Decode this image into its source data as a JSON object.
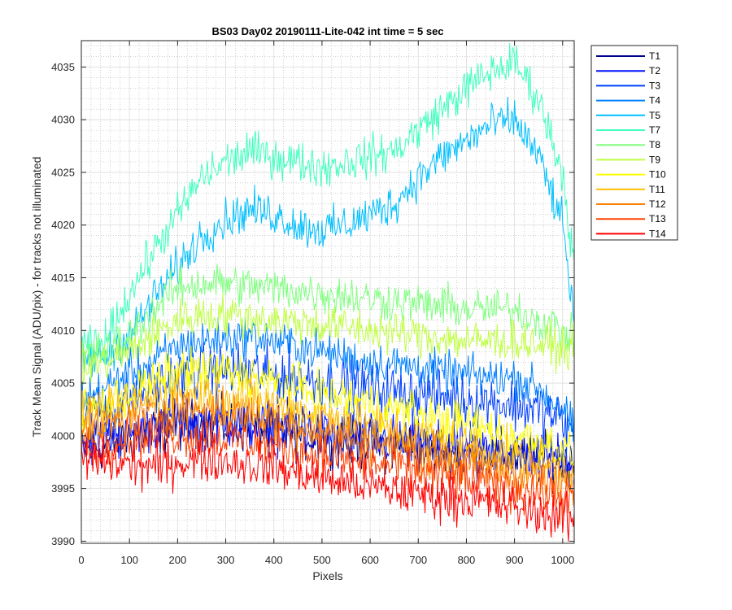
{
  "chart_data": {
    "type": "line",
    "title": "BS03 Day02 20190111-Lite-042 int time = 5 sec",
    "xlabel": "Pixels",
    "ylabel": "Track Mean Signal (ADU/pix) - for tracks not illuminated",
    "xlim": [
      0,
      1024
    ],
    "ylim": [
      3989.8,
      4037.5
    ],
    "xticks": [
      0,
      100,
      200,
      300,
      400,
      500,
      600,
      700,
      800,
      900,
      1000
    ],
    "yticks": [
      3990,
      3995,
      4000,
      4005,
      4010,
      4015,
      4020,
      4025,
      4030,
      4035
    ],
    "grid": "major and minor",
    "legend_position": "outside-top-right",
    "noise_note": "each series is dense, noisy per-pixel data; values listed are approximate trend levels at anchor pixels",
    "x_anchor": [
      0,
      50,
      100,
      150,
      200,
      250,
      300,
      350,
      400,
      450,
      500,
      550,
      600,
      650,
      700,
      750,
      800,
      850,
      900,
      950,
      1000,
      1024
    ],
    "series": [
      {
        "name": "T1",
        "color": "#00008F",
        "amplitude": 2.0,
        "values": [
          3998.5,
          3999.2,
          3999.8,
          4000.5,
          4001.0,
          4001.2,
          4001.0,
          4000.8,
          4000.5,
          4000.2,
          3999.8,
          3999.5,
          3999.2,
          3999.0,
          3998.8,
          3998.5,
          3998.3,
          3998.2,
          3998.0,
          3997.8,
          3997.5,
          3997.3
        ]
      },
      {
        "name": "T2",
        "color": "#0010FF",
        "amplitude": 2.0,
        "values": [
          3999.5,
          4000.0,
          4000.5,
          4001.0,
          4001.5,
          4001.5,
          4001.3,
          4001.0,
          4000.8,
          4000.5,
          4000.2,
          4000.0,
          3999.7,
          3999.5,
          3999.2,
          3999.0,
          3998.8,
          3998.6,
          3998.4,
          3998.2,
          3998.0,
          3997.8
        ]
      },
      {
        "name": "T3",
        "color": "#0040FF",
        "amplitude": 2.2,
        "values": [
          4001.5,
          4002.5,
          4003.5,
          4004.5,
          4005.5,
          4006.0,
          4006.2,
          4006.0,
          4005.8,
          4005.5,
          4005.2,
          4004.8,
          4004.5,
          4004.2,
          4004.0,
          4003.8,
          4003.5,
          4003.2,
          4003.0,
          4002.5,
          4001.5,
          4000.0
        ]
      },
      {
        "name": "T4",
        "color": "#0080FF",
        "amplitude": 1.6,
        "values": [
          4003.5,
          4004.5,
          4006.0,
          4007.0,
          4008.5,
          4009.0,
          4009.2,
          4009.5,
          4009.0,
          4008.5,
          4008.0,
          4007.5,
          4007.0,
          4006.8,
          4006.5,
          4006.0,
          4005.8,
          4005.5,
          4005.5,
          4004.5,
          4002.5,
          4000.5
        ]
      },
      {
        "name": "T5",
        "color": "#00BFFF",
        "amplitude": 1.6,
        "values": [
          4007.0,
          4007.5,
          4009.5,
          4013.0,
          4016.0,
          4019.0,
          4020.5,
          4021.5,
          4021.0,
          4020.0,
          4019.5,
          4020.0,
          4021.0,
          4022.0,
          4024.5,
          4026.5,
          4028.0,
          4029.5,
          4030.0,
          4026.5,
          4020.0,
          4011.0
        ]
      },
      {
        "name": "T7",
        "color": "#40FFBF",
        "amplitude": 1.6,
        "values": [
          4008.0,
          4009.0,
          4013.5,
          4017.5,
          4021.0,
          4024.5,
          4026.0,
          4027.0,
          4026.5,
          4026.0,
          4025.5,
          4026.0,
          4026.5,
          4027.0,
          4029.0,
          4031.0,
          4033.0,
          4034.5,
          4035.5,
          4032.0,
          4025.0,
          4016.0
        ]
      },
      {
        "name": "T8",
        "color": "#80FF80",
        "amplitude": 1.6,
        "values": [
          4007.5,
          4008.0,
          4009.5,
          4012.0,
          4014.0,
          4014.5,
          4014.5,
          4014.2,
          4014.0,
          4013.8,
          4013.5,
          4013.3,
          4013.0,
          4012.8,
          4012.5,
          4012.3,
          4012.0,
          4012.0,
          4012.0,
          4011.0,
          4010.0,
          4009.0
        ]
      },
      {
        "name": "T9",
        "color": "#BFFF40",
        "amplitude": 1.6,
        "values": [
          4006.5,
          4007.0,
          4008.0,
          4009.5,
          4011.0,
          4011.5,
          4011.5,
          4011.2,
          4011.0,
          4010.8,
          4010.5,
          4010.3,
          4010.0,
          4009.8,
          4009.5,
          4009.3,
          4009.0,
          4009.0,
          4009.0,
          4008.7,
          4008.3,
          4008.0
        ]
      },
      {
        "name": "T10",
        "color": "#FFFF00",
        "amplitude": 1.8,
        "values": [
          4002.5,
          4003.0,
          4004.0,
          4005.0,
          4006.0,
          4006.2,
          4006.0,
          4005.5,
          4005.0,
          4004.5,
          4004.0,
          4003.5,
          4003.0,
          4002.5,
          4002.0,
          4001.5,
          4001.0,
          4000.5,
          4000.0,
          3999.5,
          3998.8,
          3998.0
        ]
      },
      {
        "name": "T11",
        "color": "#FFBF00",
        "amplitude": 1.8,
        "values": [
          4001.5,
          4002.0,
          4002.8,
          4003.5,
          4004.0,
          4004.0,
          4003.8,
          4003.5,
          4003.0,
          4002.5,
          4002.0,
          4001.5,
          4001.0,
          4000.5,
          4000.0,
          3999.5,
          3999.0,
          3998.5,
          3998.0,
          3997.5,
          3997.0,
          3996.5
        ]
      },
      {
        "name": "T12",
        "color": "#FF8000",
        "amplitude": 1.8,
        "values": [
          4000.5,
          4001.0,
          4001.5,
          4002.0,
          4002.5,
          4002.5,
          4002.2,
          4002.0,
          4001.5,
          4001.0,
          4000.5,
          4000.0,
          3999.5,
          3999.0,
          3998.5,
          3998.0,
          3997.5,
          3997.0,
          3996.5,
          3996.0,
          3995.5,
          3995.0
        ]
      },
      {
        "name": "T13",
        "color": "#FF4000",
        "amplitude": 1.8,
        "values": [
          3999.0,
          3999.3,
          3999.8,
          4000.0,
          4000.2,
          4000.0,
          3999.8,
          3999.5,
          3999.0,
          3998.6,
          3998.2,
          3997.8,
          3997.4,
          3997.0,
          3996.6,
          3996.2,
          3995.8,
          3995.4,
          3995.0,
          3994.6,
          3994.2,
          3993.8
        ]
      },
      {
        "name": "T14",
        "color": "#FF0000",
        "amplitude": 1.8,
        "values": [
          3997.8,
          3997.5,
          3997.3,
          3997.0,
          3997.5,
          3997.8,
          3997.7,
          3997.3,
          3997.0,
          3996.5,
          3996.0,
          3995.6,
          3995.2,
          3994.8,
          3994.5,
          3994.2,
          3994.0,
          3993.6,
          3993.2,
          3992.8,
          3992.3,
          3992.0
        ]
      }
    ]
  }
}
